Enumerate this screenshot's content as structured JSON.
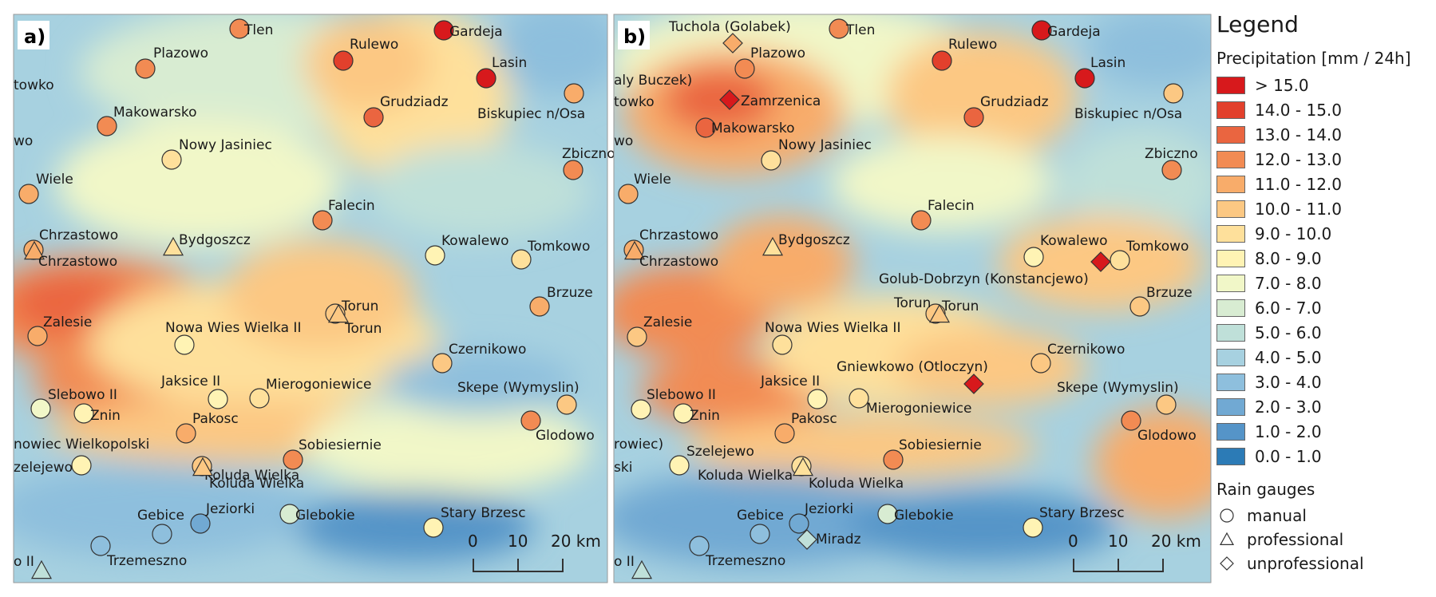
{
  "legend": {
    "title": "Legend",
    "precip_title": "Precipitation [mm / 24h]",
    "classes": [
      {
        "label": "> 15.0",
        "color": "#d7191c"
      },
      {
        "label": "14.0 - 15.0",
        "color": "#e2402c"
      },
      {
        "label": "13.0 - 14.0",
        "color": "#ea6540"
      },
      {
        "label": "12.0 - 13.0",
        "color": "#f28b53"
      },
      {
        "label": "11.0 - 12.0",
        "color": "#f8ac6a"
      },
      {
        "label": "10.0 - 11.0",
        "color": "#fcc883"
      },
      {
        "label": "9.0 - 10.0",
        "color": "#fee09b"
      },
      {
        "label": "8.0 - 9.0",
        "color": "#fff3b4"
      },
      {
        "label": "7.0 - 8.0",
        "color": "#f1f7c8"
      },
      {
        "label": "6.0 - 7.0",
        "color": "#d8ecd2"
      },
      {
        "label": "5.0 - 6.0",
        "color": "#bfe0d9"
      },
      {
        "label": "4.0 - 5.0",
        "color": "#a7d1e0"
      },
      {
        "label": "3.0 - 4.0",
        "color": "#8ebfdd"
      },
      {
        "label": "2.0 - 3.0",
        "color": "#71a9d3"
      },
      {
        "label": "1.0 - 2.0",
        "color": "#5594c8"
      },
      {
        "label": "0.0 - 1.0",
        "color": "#2c7bb6"
      }
    ],
    "gauges_title": "Rain gauges",
    "gauges": [
      {
        "type": "manual",
        "label": "manual"
      },
      {
        "type": "professional",
        "label": "professional"
      },
      {
        "type": "unprofessional",
        "label": "unprofessional"
      }
    ]
  },
  "scalebar": {
    "ticks": [
      "0",
      "10",
      "20 km"
    ]
  },
  "panels": [
    {
      "tag": "a)",
      "stations": [
        {
          "label": "Tlen",
          "type": "manual",
          "cls": 12
        },
        {
          "label": "Gardeja",
          "type": "manual",
          "cls": 15
        },
        {
          "label": "Plazowo",
          "type": "manual",
          "cls": 12
        },
        {
          "label": "Rulewo",
          "type": "manual",
          "cls": 14
        },
        {
          "label": "Lasin",
          "type": "manual",
          "cls": 15
        },
        {
          "label": "towko",
          "type": "none"
        },
        {
          "label": "Grudziadz",
          "type": "manual",
          "cls": 13
        },
        {
          "label": "Biskupiec n/Osa",
          "type": "manual",
          "cls": 11
        },
        {
          "label": "Makowarsko",
          "type": "manual",
          "cls": 12
        },
        {
          "label": "wo",
          "type": "none"
        },
        {
          "label": "Nowy Jasiniec",
          "type": "manual",
          "cls": 9
        },
        {
          "label": "Zbiczno",
          "type": "manual",
          "cls": 12
        },
        {
          "label": "Wiele",
          "type": "manual",
          "cls": 11
        },
        {
          "label": "Falecin",
          "type": "manual",
          "cls": 12
        },
        {
          "label": "Chrzastowo",
          "type": "manual",
          "cls": 11
        },
        {
          "label": "Chrzastowo",
          "type": "professional",
          "cls": 11
        },
        {
          "label": "Bydgoszcz",
          "type": "professional",
          "cls": 9
        },
        {
          "label": "Kowalewo",
          "type": "manual",
          "cls": 8
        },
        {
          "label": "Tomkowo",
          "type": "manual",
          "cls": 9
        },
        {
          "label": "Brzuze",
          "type": "manual",
          "cls": 11
        },
        {
          "label": "Torun",
          "type": "manual",
          "cls": 10
        },
        {
          "label": "Torun",
          "type": "professional",
          "cls": 10
        },
        {
          "label": "Zalesie",
          "type": "manual",
          "cls": 11
        },
        {
          "label": "Nowa Wies Wielka II",
          "type": "manual",
          "cls": 8
        },
        {
          "label": "Czernikowo",
          "type": "manual",
          "cls": 10
        },
        {
          "label": "Slebowo II",
          "type": "manual",
          "cls": 7
        },
        {
          "label": "Jaksice II",
          "type": "manual",
          "cls": 8
        },
        {
          "label": "Mierogoniewice",
          "type": "manual",
          "cls": 9
        },
        {
          "label": "Skepe (Wymyslin)",
          "type": "manual",
          "cls": 10
        },
        {
          "label": "Znin",
          "type": "manual",
          "cls": 8
        },
        {
          "label": "Glodowo",
          "type": "manual",
          "cls": 12
        },
        {
          "label": "Pakosc",
          "type": "manual",
          "cls": 11
        },
        {
          "label": "nowiec Wielkopolski",
          "type": "none"
        },
        {
          "label": "Sobiesiernie",
          "type": "manual",
          "cls": 12
        },
        {
          "label": "zelejewo",
          "type": "manual",
          "cls": 8
        },
        {
          "label": "Koluda Wielka",
          "type": "manual",
          "cls": 10
        },
        {
          "label": "Koluda Wielka",
          "type": "professional",
          "cls": 10
        },
        {
          "label": "Gebice",
          "type": "manual",
          "cls": 3
        },
        {
          "label": "Jeziorki",
          "type": "manual",
          "cls": 2
        },
        {
          "label": "Glebokie",
          "type": "manual",
          "cls": 6
        },
        {
          "label": "Stary Brzesc",
          "type": "manual",
          "cls": 8
        },
        {
          "label": "Trzemeszno",
          "type": "manual",
          "cls": 3
        },
        {
          "label": "o II",
          "type": "professional",
          "cls": 5
        }
      ]
    },
    {
      "tag": "b)",
      "stations": [
        {
          "label": "Tuchola (Golabek)",
          "type": "unprofessional",
          "cls": 11
        },
        {
          "label": "Tlen",
          "type": "manual",
          "cls": 12
        },
        {
          "label": "Gardeja",
          "type": "manual",
          "cls": 15
        },
        {
          "label": "Plazowo",
          "type": "manual",
          "cls": 12
        },
        {
          "label": "Rulewo",
          "type": "manual",
          "cls": 14
        },
        {
          "label": "Lasin",
          "type": "manual",
          "cls": 15
        },
        {
          "label": "aly Buczek)",
          "type": "none"
        },
        {
          "label": "towko",
          "type": "none"
        },
        {
          "label": "Zamrzenica",
          "type": "unprofessional",
          "cls": 15
        },
        {
          "label": "Grudziadz",
          "type": "manual",
          "cls": 13
        },
        {
          "label": "Biskupiec n/Osa",
          "type": "manual",
          "cls": 10
        },
        {
          "label": "Makowarsko",
          "type": "manual",
          "cls": 13
        },
        {
          "label": "wo",
          "type": "none"
        },
        {
          "label": "Nowy Jasiniec",
          "type": "manual",
          "cls": 9
        },
        {
          "label": "Zbiczno",
          "type": "manual",
          "cls": 12
        },
        {
          "label": "Wiele",
          "type": "manual",
          "cls": 11
        },
        {
          "label": "Falecin",
          "type": "manual",
          "cls": 12
        },
        {
          "label": "Chrzastowo",
          "type": "manual",
          "cls": 11
        },
        {
          "label": "Chrzastowo",
          "type": "professional",
          "cls": 11
        },
        {
          "label": "Bydgoszcz",
          "type": "professional",
          "cls": 9
        },
        {
          "label": "Kowalewo",
          "type": "manual",
          "cls": 8
        },
        {
          "label": "Tomkowo",
          "type": "manual",
          "cls": 9
        },
        {
          "label": "Golub-Dobrzyn (Konstancjewo)",
          "type": "unprofessional",
          "cls": 15
        },
        {
          "label": "Brzuze",
          "type": "manual",
          "cls": 10
        },
        {
          "label": "Torun",
          "type": "manual",
          "cls": 10
        },
        {
          "label": "Torun",
          "type": "professional",
          "cls": 10
        },
        {
          "label": "Zalesie",
          "type": "manual",
          "cls": 10
        },
        {
          "label": "Nowa Wies Wielka II",
          "type": "manual",
          "cls": 9
        },
        {
          "label": "Czernikowo",
          "type": "manual",
          "cls": 10
        },
        {
          "label": "Gniewkowo (Otloczyn)",
          "type": "unprofessional",
          "cls": 15
        },
        {
          "label": "Jaksice II",
          "type": "manual",
          "cls": 8
        },
        {
          "label": "Skepe (Wymyslin)",
          "type": "manual",
          "cls": 10
        },
        {
          "label": "Slebowo II",
          "type": "manual",
          "cls": 8
        },
        {
          "label": "Mierogoniewice",
          "type": "manual",
          "cls": 9
        },
        {
          "label": "Znin",
          "type": "manual",
          "cls": 8
        },
        {
          "label": "Glodowo",
          "type": "manual",
          "cls": 12
        },
        {
          "label": "Pakosc",
          "type": "manual",
          "cls": 11
        },
        {
          "label": "rowiec)",
          "type": "none"
        },
        {
          "label": "Sobiesiernie",
          "type": "manual",
          "cls": 12
        },
        {
          "label": "Szelejewo",
          "type": "manual",
          "cls": 8
        },
        {
          "label": "ski",
          "type": "none"
        },
        {
          "label": "Koluda Wielka",
          "type": "manual",
          "cls": 9
        },
        {
          "label": "Koluda Wielka",
          "type": "professional",
          "cls": 9
        },
        {
          "label": "Gebice",
          "type": "manual",
          "cls": 3
        },
        {
          "label": "Jeziorki",
          "type": "manual",
          "cls": 2
        },
        {
          "label": "Glebokie",
          "type": "manual",
          "cls": 6
        },
        {
          "label": "Stary Brzesc",
          "type": "manual",
          "cls": 8
        },
        {
          "label": "Miradz",
          "type": "unprofessional",
          "cls": 5
        },
        {
          "label": "Trzemeszno",
          "type": "manual",
          "cls": 3
        },
        {
          "label": "o II",
          "type": "professional",
          "cls": 5
        }
      ]
    }
  ]
}
